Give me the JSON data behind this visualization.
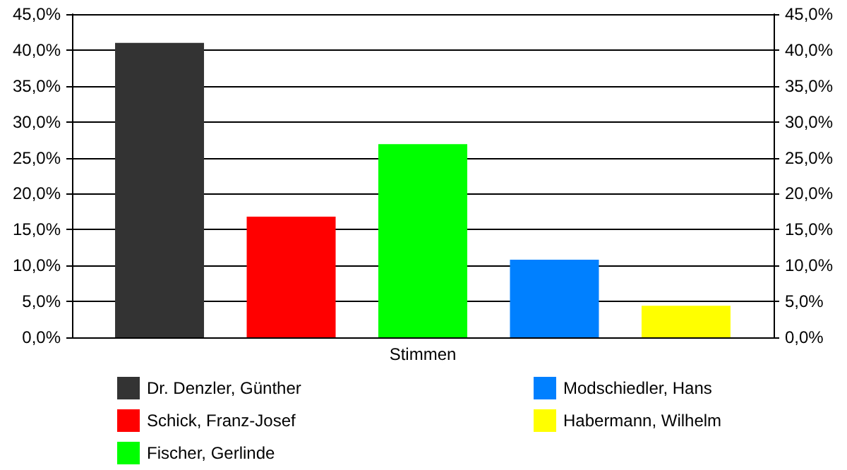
{
  "chart_data": {
    "type": "bar",
    "categories": [
      "Stimmen"
    ],
    "series": [
      {
        "name": "Dr. Denzler, Günther",
        "color": "#333333",
        "values": [
          41.0
        ]
      },
      {
        "name": "Schick, Franz-Josef",
        "color": "#ff0000",
        "values": [
          16.8
        ]
      },
      {
        "name": "Fischer, Gerlinde",
        "color": "#00ff00",
        "values": [
          26.9
        ]
      },
      {
        "name": "Modschiedler, Hans",
        "color": "#0080ff",
        "values": [
          10.8
        ]
      },
      {
        "name": "Habermann, Wilhelm",
        "color": "#ffff00",
        "values": [
          4.4
        ]
      }
    ],
    "ylim": [
      0,
      45
    ],
    "yticks": [
      {
        "value": 0,
        "label": "0,0%"
      },
      {
        "value": 5,
        "label": "5,0%"
      },
      {
        "value": 10,
        "label": "10,0%"
      },
      {
        "value": 15,
        "label": "15,0%"
      },
      {
        "value": 20,
        "label": "20,0%"
      },
      {
        "value": 25,
        "label": "25,0%"
      },
      {
        "value": 30,
        "label": "30,0%"
      },
      {
        "value": 35,
        "label": "35,0%"
      },
      {
        "value": 40,
        "label": "40,0%"
      },
      {
        "value": 45,
        "label": "45,0%"
      }
    ],
    "grid": "y",
    "legend": "bottom"
  }
}
